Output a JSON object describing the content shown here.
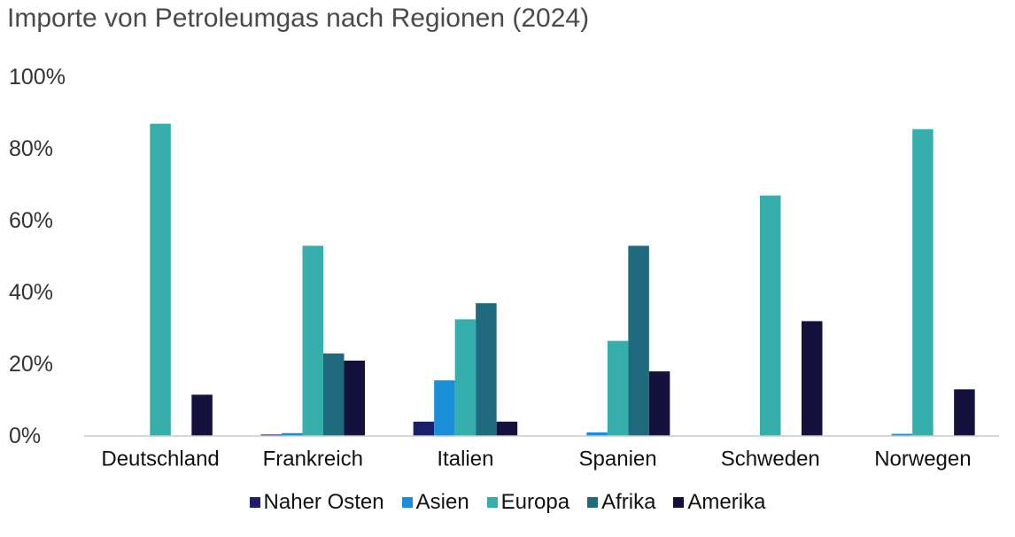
{
  "chart_data": {
    "type": "bar",
    "title": "Importe von Petroleumgas nach Regionen (2024)",
    "categories": [
      "Deutschland",
      "Frankreich",
      "Italien",
      "Spanien",
      "Schweden",
      "Norwegen"
    ],
    "series": [
      {
        "name": "Naher Osten",
        "color": "#1b1e6b",
        "values": [
          0,
          0.4,
          4,
          0,
          0,
          0
        ]
      },
      {
        "name": "Asien",
        "color": "#1a8fd8",
        "values": [
          0,
          0.8,
          15.5,
          1,
          0,
          0.6
        ]
      },
      {
        "name": "Europa",
        "color": "#36aeab",
        "values": [
          87,
          53,
          32.5,
          26.5,
          67,
          85.5
        ]
      },
      {
        "name": "Afrika",
        "color": "#206a7e",
        "values": [
          0,
          23,
          37,
          53,
          0,
          0
        ]
      },
      {
        "name": "Amerika",
        "color": "#14123d",
        "values": [
          11.5,
          21,
          4,
          18,
          32,
          13
        ]
      }
    ],
    "ylim": [
      0,
      100
    ],
    "yticks": [
      0,
      20,
      40,
      60,
      80,
      100
    ],
    "ytick_labels": [
      "0%",
      "20%",
      "40%",
      "60%",
      "80%",
      "100%"
    ],
    "xlabel": "",
    "ylabel": "",
    "grid": false,
    "legend_position": "bottom"
  }
}
